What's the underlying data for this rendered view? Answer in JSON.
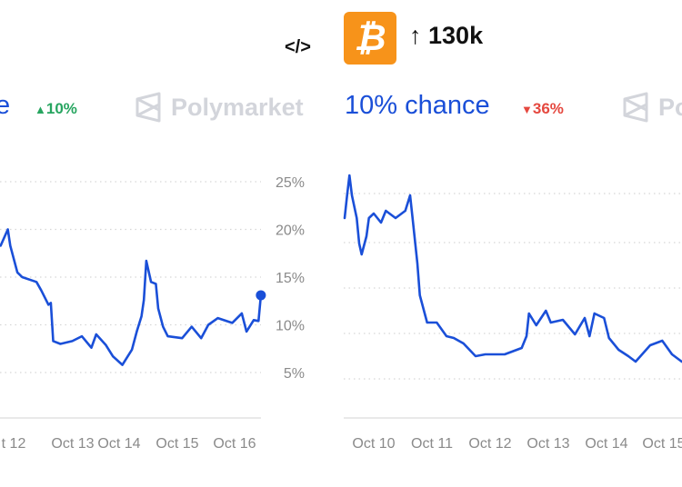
{
  "left_panel": {
    "title": "e",
    "change": "10%",
    "change_direction": "up",
    "brand": "Polymarket",
    "embed_icon": "code-embed-icon",
    "embed_label": "</>"
  },
  "right_panel": {
    "coin_icon": "bitcoin-icon",
    "coin_symbol": "₿",
    "target_arrow": "↑",
    "target": "130k",
    "title": "10% chance",
    "change": "36%",
    "change_direction": "down",
    "brand": "Po"
  },
  "colors": {
    "line": "#1a4fd8",
    "up": "#27a560",
    "down": "#e5483f",
    "btc": "#f7931a"
  },
  "chart_data": [
    {
      "type": "line",
      "x_ticks": [
        "t 12",
        "Oct 13",
        "Oct 14",
        "Oct 15",
        "Oct 16"
      ],
      "y_ticks": [
        "25%",
        "20%",
        "15%",
        "10%",
        "5%"
      ],
      "ylim": [
        0,
        25
      ],
      "grid": true,
      "series": [
        {
          "x": [
            "Oct 11 22:00",
            "Oct 12 01:00",
            "Oct 12 02:00",
            "Oct 12 05:00",
            "Oct 12 07:00",
            "Oct 12 13:00",
            "Oct 12 15:00",
            "Oct 12 18:00",
            "Oct 12 19:00",
            "Oct 12 20:00",
            "Oct 12 23:00",
            "Oct 13 04:00",
            "Oct 13 08:00",
            "Oct 13 12:00",
            "Oct 13 14:00",
            "Oct 13 18:00",
            "Oct 13 21:00",
            "Oct 14 01:00",
            "Oct 14 05:00",
            "Oct 14 07:00",
            "Oct 14 09:00",
            "Oct 14 10:00",
            "Oct 14 11:00",
            "Oct 14 13:00",
            "Oct 14 15:00",
            "Oct 14 16:00",
            "Oct 14 18:00",
            "Oct 14 20:00",
            "Oct 15 02:00",
            "Oct 15 06:00",
            "Oct 15 10:00",
            "Oct 15 13:00",
            "Oct 15 17:00",
            "Oct 15 23:00",
            "Oct 16 03:00",
            "Oct 16 05:00",
            "Oct 16 08:00",
            "Oct 16 10:00",
            "Oct 16 11:00"
          ],
          "y": [
            18.3,
            20.0,
            18.3,
            15.5,
            15.0,
            14.5,
            13.6,
            12.1,
            12.3,
            8.3,
            8.0,
            8.3,
            8.8,
            7.6,
            9.0,
            7.9,
            6.7,
            5.8,
            7.4,
            9.3,
            10.9,
            12.6,
            16.7,
            14.5,
            14.3,
            11.7,
            9.8,
            8.8,
            8.6,
            9.8,
            8.6,
            10.0,
            10.7,
            10.2,
            11.2,
            9.3,
            10.5,
            10.4,
            13.1
          ]
        }
      ]
    },
    {
      "type": "line",
      "x_ticks": [
        "Oct 10",
        "Oct 11",
        "Oct 12",
        "Oct 13",
        "Oct 14",
        "Oct 15"
      ],
      "ylim": [
        0,
        25
      ],
      "grid": true,
      "series": [
        {
          "x": [
            "Oct 9 12:00",
            "Oct 9 13:00",
            "Oct 9 14:00",
            "Oct 9 15:00",
            "Oct 9 17:00",
            "Oct 9 18:00",
            "Oct 9 19:00",
            "Oct 9 21:00",
            "Oct 9 22:00",
            "Oct 10 00:00",
            "Oct 10 03:00",
            "Oct 10 05:00",
            "Oct 10 09:00",
            "Oct 10 13:00",
            "Oct 10 15:00",
            "Oct 10 16:00",
            "Oct 10 18:00",
            "Oct 10 19:00",
            "Oct 10 22:00",
            "Oct 11 02:00",
            "Oct 11 06:00",
            "Oct 11 09:00",
            "Oct 11 13:00",
            "Oct 11 18:00",
            "Oct 11 22:00",
            "Oct 12 06:00",
            "Oct 12 13:00",
            "Oct 12 15:00",
            "Oct 12 16:00",
            "Oct 12 19:00",
            "Oct 12 23:00",
            "Oct 13 01:00",
            "Oct 13 06:00",
            "Oct 13 11:00",
            "Oct 13 15:00",
            "Oct 13 17:00",
            "Oct 13 19:00",
            "Oct 13 23:00",
            "Oct 14 01:00",
            "Oct 14 05:00",
            "Oct 14 09:00",
            "Oct 14 12:00",
            "Oct 14 18:00",
            "Oct 14 23:00",
            "Oct 15 03:00",
            "Oct 15 07:00"
          ],
          "y": [
            22.7,
            25.2,
            27.4,
            25.2,
            22.7,
            19.9,
            18.7,
            20.7,
            22.7,
            23.2,
            22.2,
            23.5,
            22.7,
            23.5,
            25.2,
            22.7,
            17.7,
            14.2,
            11.2,
            11.2,
            9.7,
            9.5,
            8.9,
            7.5,
            7.7,
            7.7,
            8.4,
            9.7,
            12.2,
            10.9,
            12.5,
            11.2,
            11.5,
            9.9,
            11.7,
            9.7,
            12.2,
            11.7,
            9.5,
            8.2,
            7.5,
            6.9,
            8.7,
            9.2,
            7.7,
            6.9
          ]
        }
      ]
    }
  ]
}
